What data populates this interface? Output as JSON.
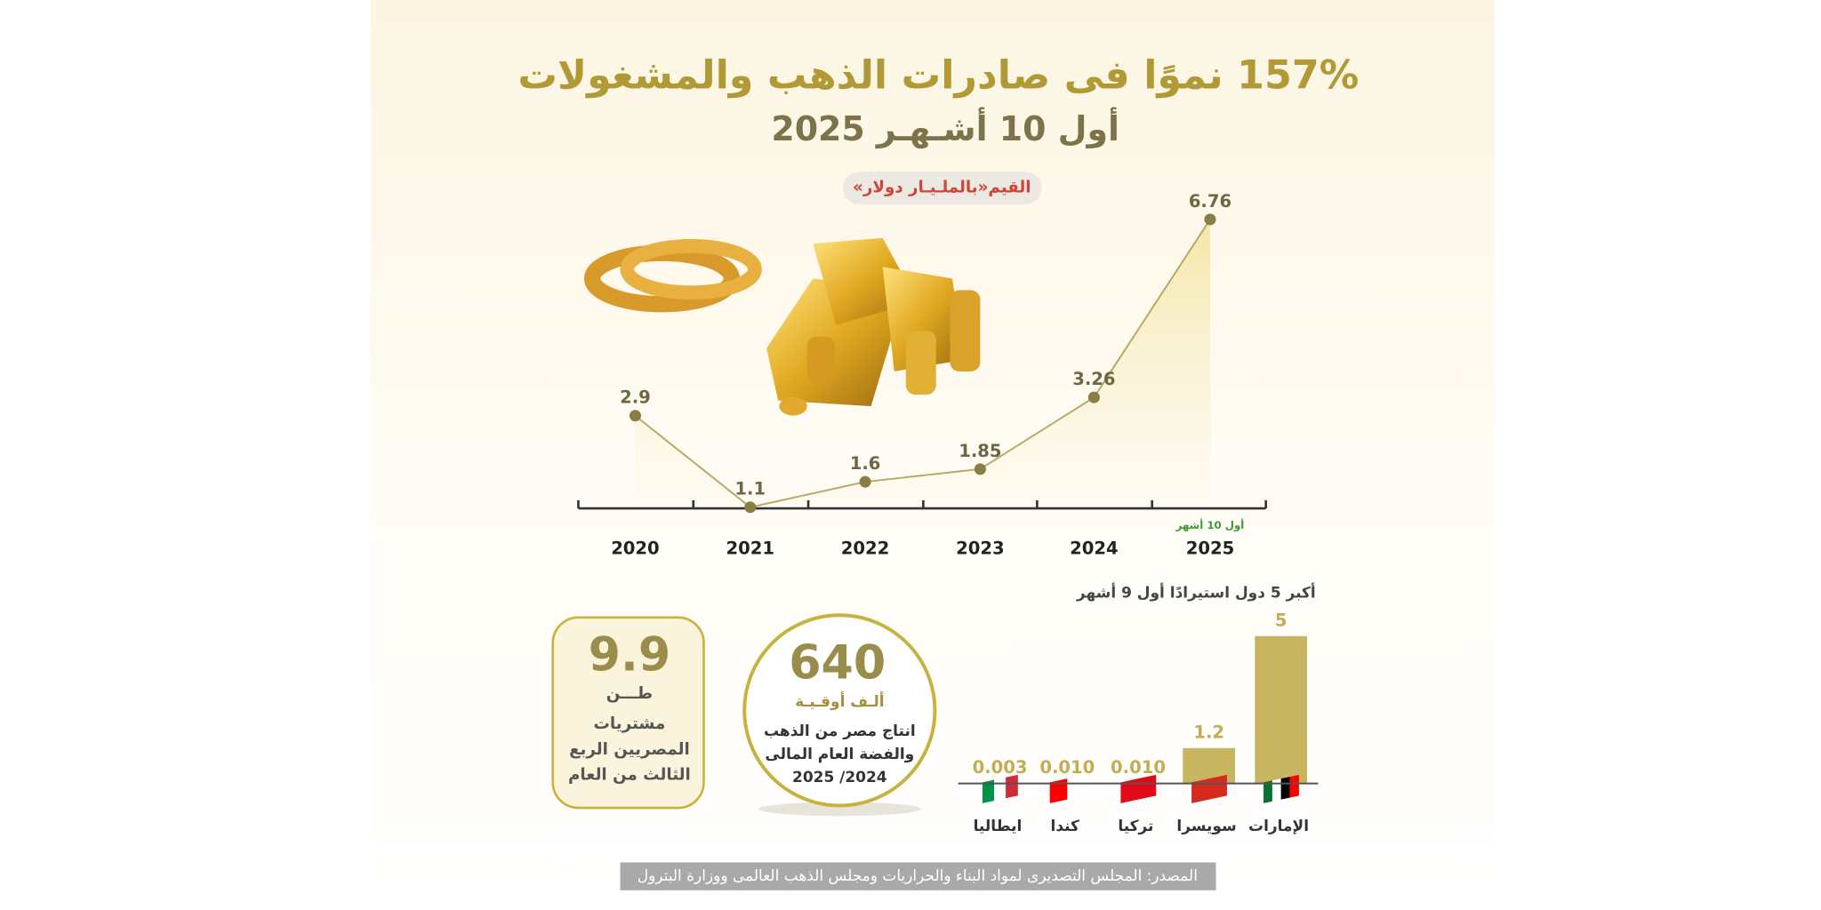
{
  "header": {
    "title": "157% نموًا فى صادرات الذهب والمشغولات",
    "subtitle": "أول 10 أشـهـر 2025"
  },
  "chart_data": [
    {
      "type": "line",
      "title": "القيم«بالملـيـار دولار»",
      "categories": [
        "2020",
        "2021",
        "2022",
        "2023",
        "2024",
        "2025"
      ],
      "values": [
        2.9,
        1.1,
        1.6,
        1.85,
        3.26,
        6.76
      ],
      "annotation": "أول 10 أشهر",
      "color": "#8a7d45"
    },
    {
      "type": "bar",
      "title": "أكبر 5 دول استيرادًا أول  9 أشهر",
      "categories": [
        "الإمارات",
        "سويسرا",
        "تركيا",
        "كندا",
        "ايطاليا"
      ],
      "values": [
        5,
        1.2,
        0.01,
        0.01,
        0.003
      ],
      "value_labels": [
        "5",
        "1.2",
        "0.010",
        "0.010",
        "0.003"
      ],
      "color": "#c8b560",
      "ylim": [
        0,
        5
      ]
    }
  ],
  "stats": {
    "production": {
      "value": "640",
      "unit": "ألـف أوقـيـة",
      "lines": [
        "انتاج مصر من الذهب",
        "والفضة العام المالى",
        "2024/ 2025"
      ]
    },
    "purchases": {
      "value": "9.9",
      "unit": "طـــن",
      "lines": [
        "مشتريات",
        "المصريين الربع",
        "الثالث من العام"
      ]
    }
  },
  "footer": {
    "source": "المصدر: المجلس التصديرى لمواد البناء والحراريات ومجلس الذهب العالمى ووزارة البترول"
  }
}
